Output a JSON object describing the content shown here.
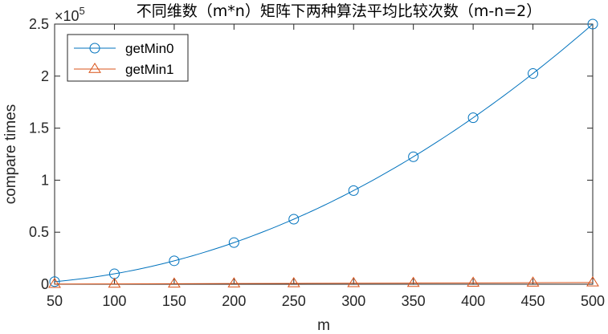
{
  "chart_data": {
    "type": "line",
    "title": "不同维数（m*n）矩阵下两种算法平均比较次数（m-n=2）",
    "xlabel": "m",
    "ylabel": "compare times",
    "y_exponent_label": "×10",
    "y_exponent": "5",
    "xlim": [
      50,
      500
    ],
    "ylim": [
      0,
      2.5
    ],
    "x_ticks": [
      50,
      100,
      150,
      200,
      250,
      300,
      350,
      400,
      450,
      500
    ],
    "y_ticks": [
      0,
      0.5,
      1,
      1.5,
      2,
      2.5
    ],
    "y_tick_labels": [
      "0",
      "0.5",
      "1",
      "1.5",
      "2",
      "2.5"
    ],
    "x": [
      50,
      100,
      150,
      200,
      250,
      300,
      350,
      400,
      450,
      500
    ],
    "series": [
      {
        "name": "getMin0",
        "marker": "circle",
        "color": "#0072BD",
        "values": [
          0.025,
          0.1,
          0.225,
          0.4,
          0.625,
          0.9,
          1.225,
          1.6,
          2.025,
          2.5
        ]
      },
      {
        "name": "getMin1",
        "marker": "triangle",
        "color": "#D95319",
        "values": [
          0.0016,
          0.0032,
          0.0048,
          0.0064,
          0.008,
          0.0096,
          0.0112,
          0.0128,
          0.0144,
          0.016
        ]
      }
    ],
    "legend_position": "top-left",
    "grid": false
  }
}
